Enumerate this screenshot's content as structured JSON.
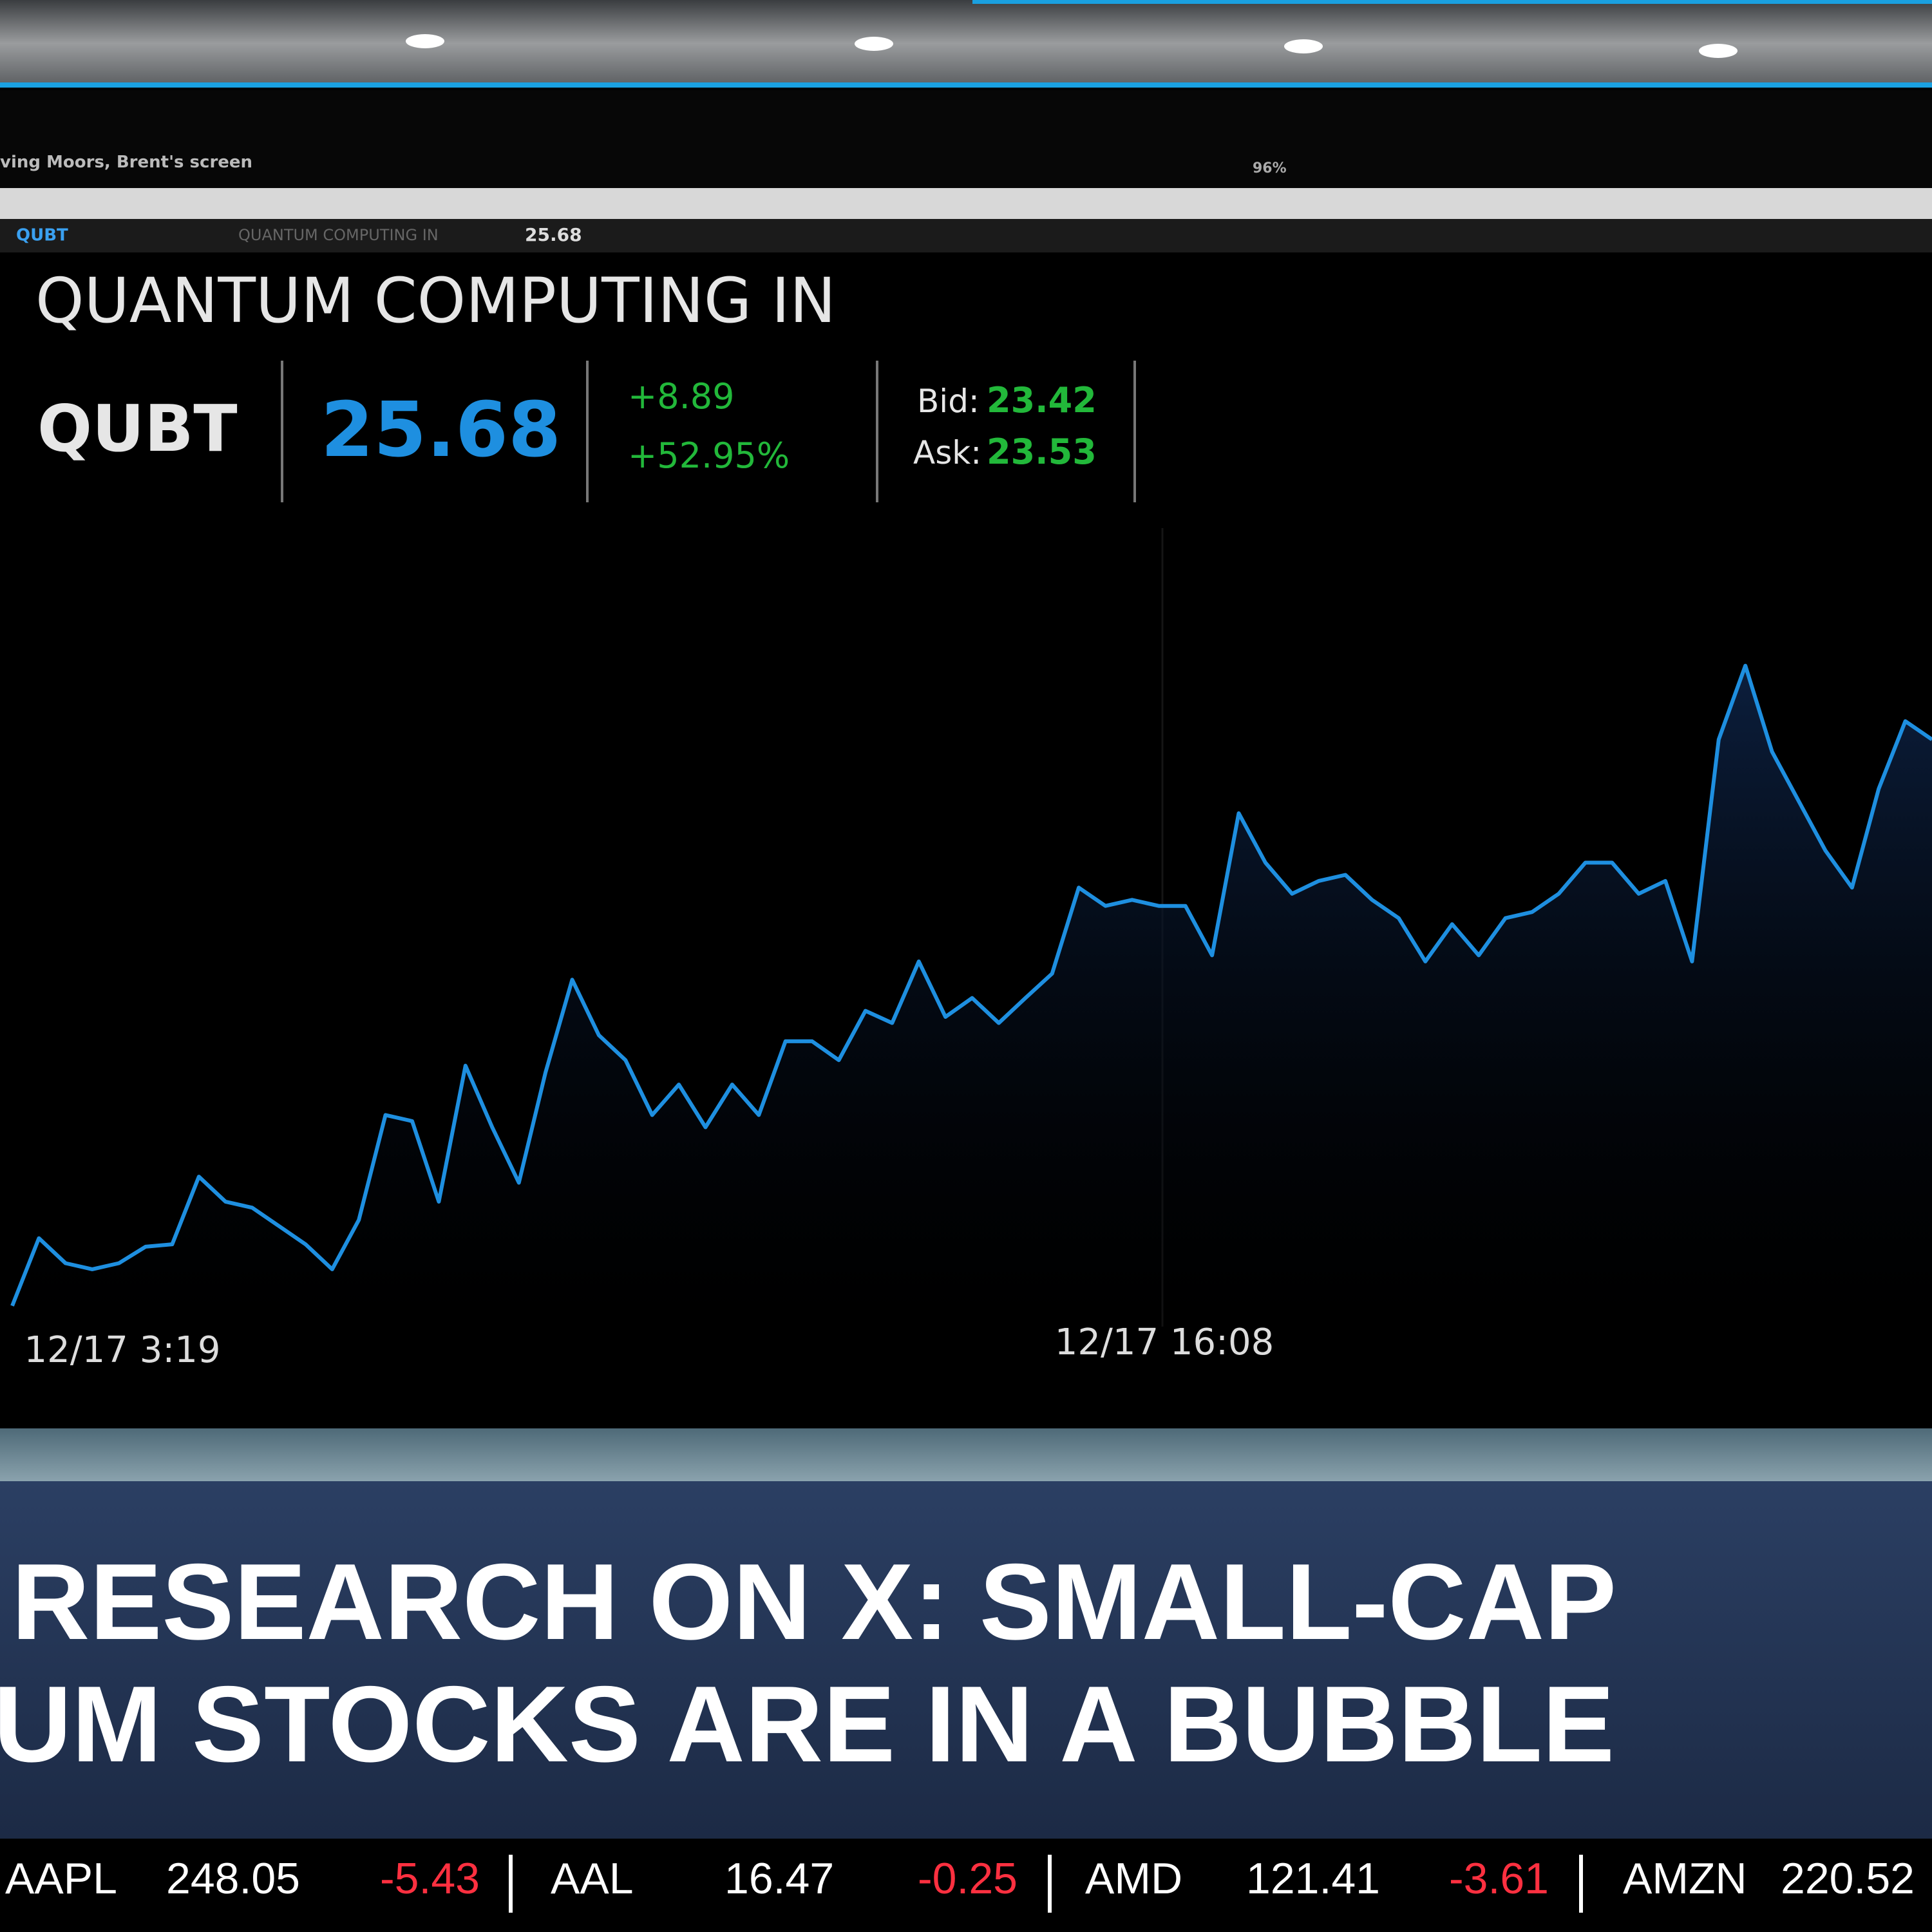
{
  "header": {
    "caption": "ving Moors, Brent's screen",
    "zoom": "96%"
  },
  "toolbar": {
    "symbol": "QUBT",
    "name": "QUANTUM COMPUTING IN",
    "price": "25.68"
  },
  "quote": {
    "title": "QUANTUM COMPUTING IN",
    "symbol": "QUBT",
    "price": "25.68",
    "change": "+8.89",
    "change_percent": "+52.95%",
    "bid_label": "Bid:",
    "bid": "23.42",
    "ask_label": "Ask:",
    "ask": "23.53"
  },
  "chart_data": {
    "type": "line",
    "xtick_labels": [
      "12/17 3:19",
      "12/17 16:08"
    ],
    "ylim": [
      15.5,
      27.5
    ],
    "series": [
      {
        "name": "QUBT",
        "color": "#1e8fe0",
        "values": [
          16.39,
          17.5,
          17.09,
          16.99,
          17.09,
          17.36,
          17.4,
          18.51,
          18.1,
          18.0,
          17.7,
          17.4,
          16.99,
          17.8,
          19.52,
          19.42,
          18.1,
          20.33,
          19.32,
          18.41,
          20.22,
          21.74,
          20.83,
          20.42,
          19.52,
          20.02,
          19.32,
          20.02,
          19.52,
          20.73,
          20.73,
          20.42,
          21.23,
          21.03,
          22.04,
          21.13,
          21.44,
          21.03,
          21.44,
          21.84,
          23.25,
          22.95,
          23.05,
          22.95,
          22.95,
          22.14,
          24.47,
          23.66,
          23.15,
          23.36,
          23.46,
          23.05,
          22.75,
          22.04,
          22.65,
          22.14,
          22.75,
          22.85,
          23.15,
          23.66,
          23.66,
          23.15,
          23.36,
          22.04,
          25.68,
          26.89,
          25.48,
          24.67,
          23.86,
          23.25,
          24.87,
          25.98,
          25.68
        ]
      }
    ]
  },
  "headline": {
    "lines": [
      "RESEARCH ON X: SMALL-CAP",
      "UM STOCKS ARE IN A BUBBLE"
    ]
  },
  "ticker": [
    {
      "symbol": "AAPL",
      "price": "248.05",
      "change": "-5.43"
    },
    {
      "symbol": "AAL",
      "price": "16.47",
      "change": "-0.25"
    },
    {
      "symbol": "AMD",
      "price": "121.41",
      "change": "-3.61"
    },
    {
      "symbol": "AMZN",
      "price": "220.52"
    }
  ]
}
